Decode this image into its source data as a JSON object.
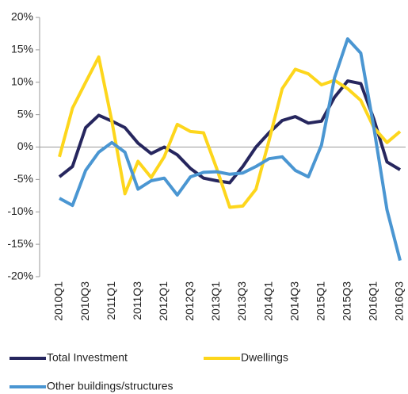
{
  "chart_data": {
    "type": "line",
    "categories": [
      "2010Q1",
      null,
      "2010Q3",
      null,
      "2011Q1",
      null,
      "2011Q3",
      null,
      "2012Q1",
      null,
      "2012Q3",
      null,
      "2013Q1",
      null,
      "2013Q3",
      null,
      "2014Q1",
      null,
      "2014Q3",
      null,
      "2015Q1",
      null,
      "2015Q3",
      null,
      "2016Q1",
      null,
      "2016Q3"
    ],
    "series": [
      {
        "name": "Total Investment",
        "color": "#26265e",
        "values": [
          -4.6,
          -3,
          3,
          4.9,
          4,
          3,
          0.6,
          -1,
          0,
          -1.2,
          -3.3,
          -4.8,
          -5.2,
          -5.5,
          -3,
          0,
          2.2,
          4.1,
          4.7,
          3.7,
          4,
          7.7,
          10.2,
          9.8,
          4.3,
          -2.3,
          -3.5
        ]
      },
      {
        "name": "Dwellings",
        "color": "#fdd61c",
        "values": [
          -1.5,
          6,
          10,
          13.9,
          4,
          -7.2,
          -2.2,
          -4.7,
          -1.5,
          3.5,
          2.4,
          2.2,
          -3.3,
          -9.3,
          -9.1,
          -6.5,
          1,
          9,
          12,
          11.3,
          9.6,
          10.3,
          9,
          7.2,
          3,
          0.7,
          2.4
        ]
      },
      {
        "name": "Other buildings/structures",
        "color": "#4a96d2",
        "values": [
          -7.9,
          -9,
          -3.6,
          -0.8,
          0.7,
          -0.8,
          -6.5,
          -5.2,
          -4.8,
          -7.4,
          -4.6,
          -3.9,
          -3.8,
          -4.2,
          -4,
          -3,
          -1.8,
          -1.5,
          -3.6,
          -4.6,
          0.3,
          10.7,
          16.7,
          14.5,
          3,
          -9.7,
          -17.5
        ]
      }
    ],
    "ylim": [
      -20,
      20
    ],
    "yticks": [
      {
        "value": -20,
        "label": "-20%"
      },
      {
        "value": -15,
        "label": "-15%"
      },
      {
        "value": -10,
        "label": "-10%"
      },
      {
        "value": -5,
        "label": "-5%"
      },
      {
        "value": 0,
        "label": "0%"
      },
      {
        "value": 5,
        "label": "5%"
      },
      {
        "value": 10,
        "label": "10%"
      },
      {
        "value": 15,
        "label": "15%"
      },
      {
        "value": 20,
        "label": "20%"
      }
    ],
    "legend": "bottom"
  }
}
